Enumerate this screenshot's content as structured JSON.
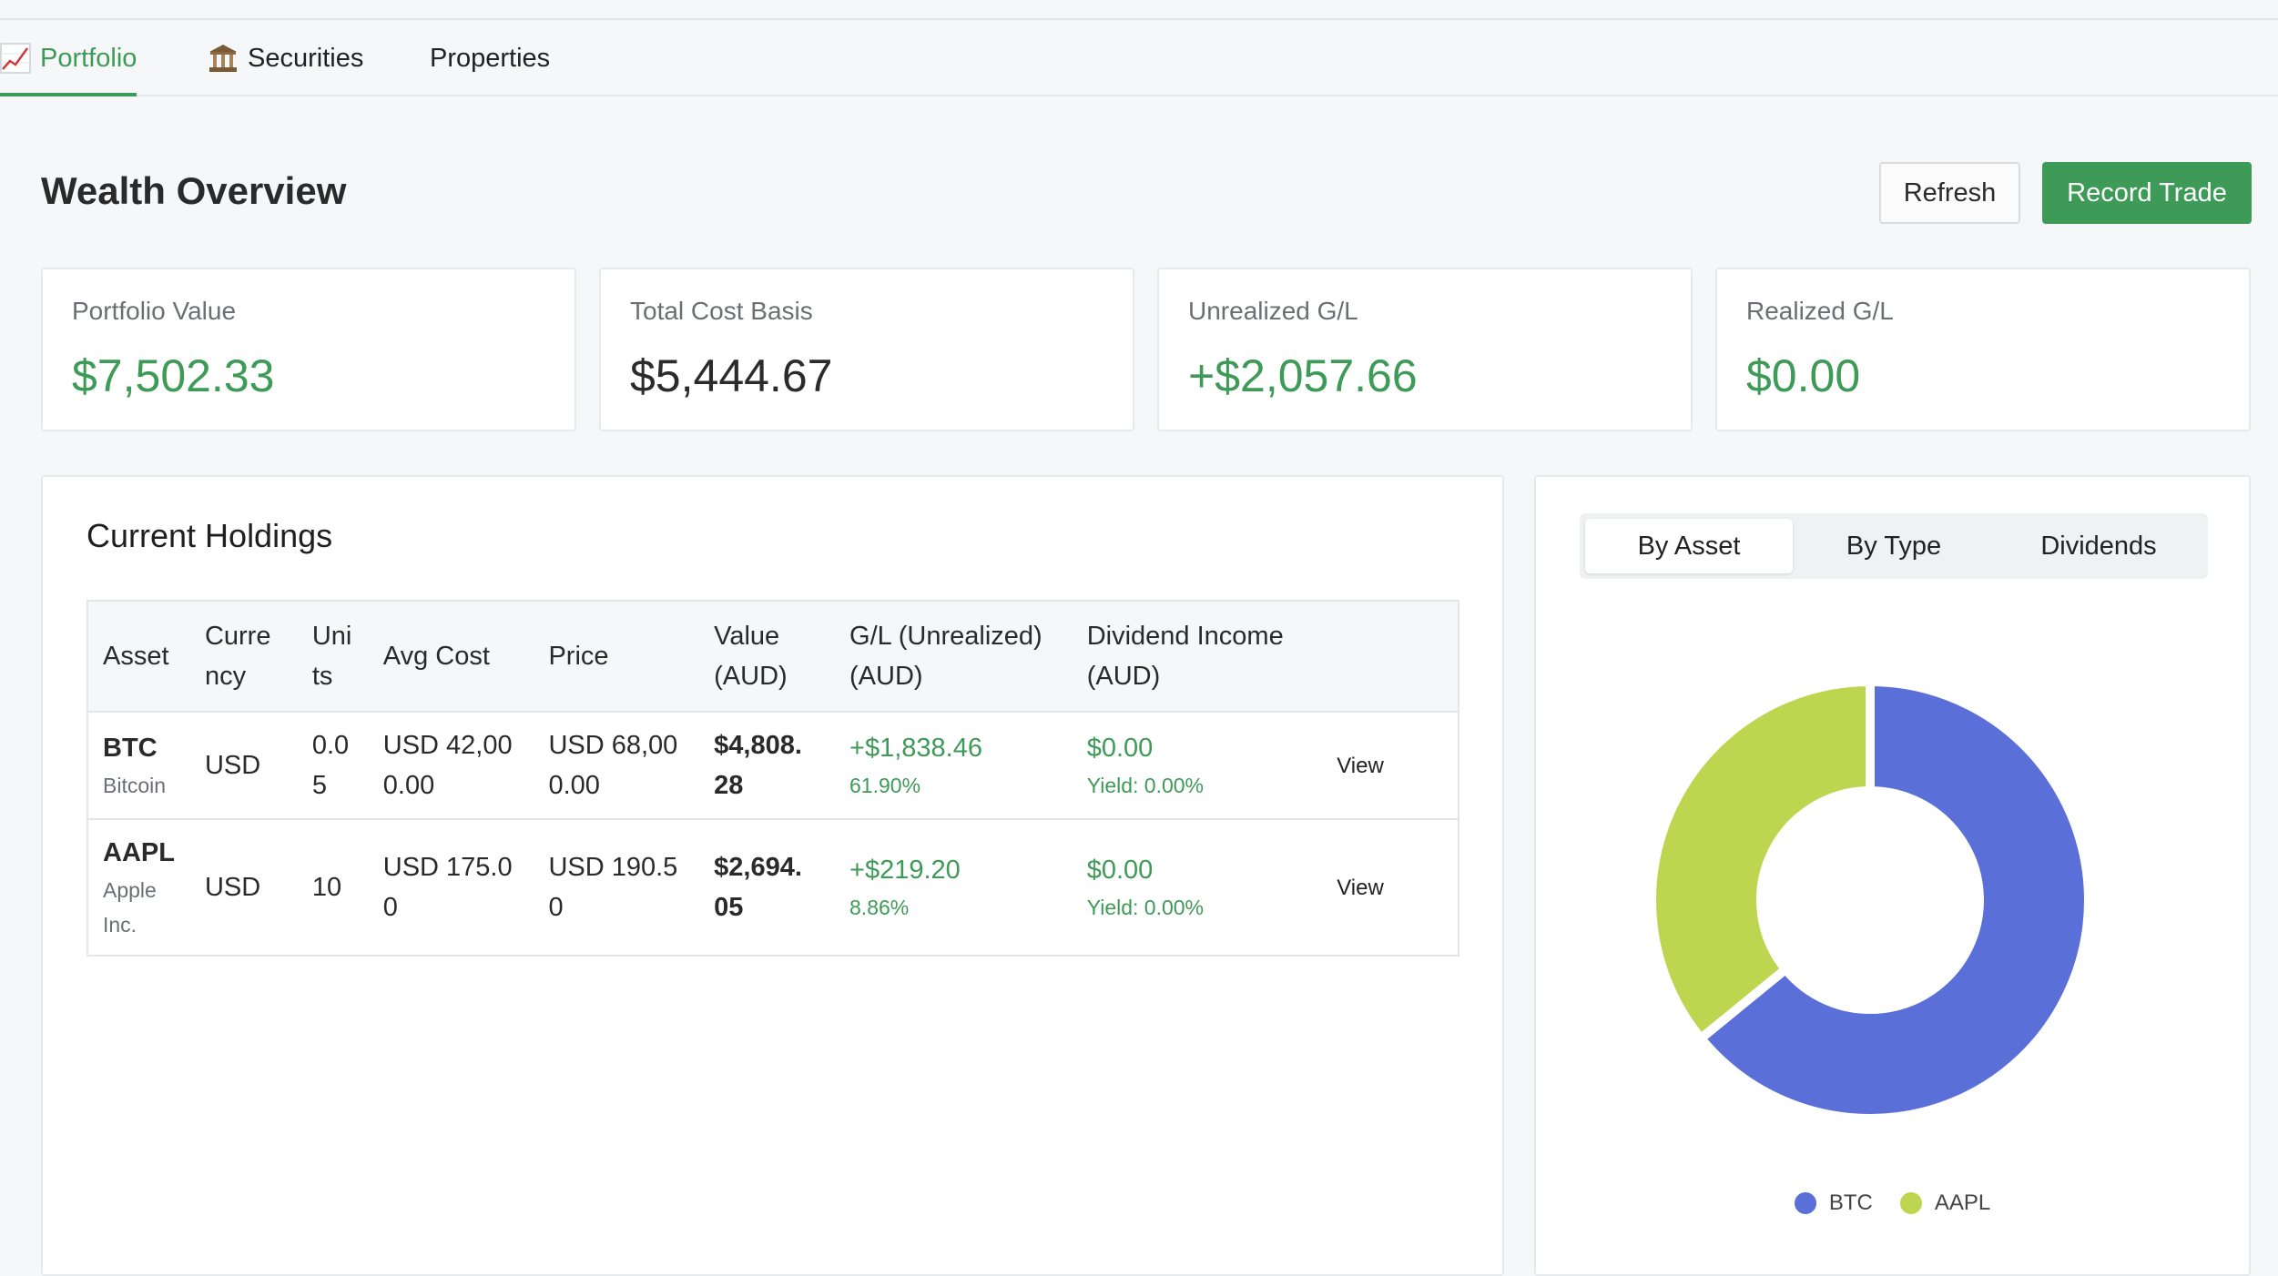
{
  "nav": {
    "tabs": [
      {
        "label": "Portfolio",
        "icon": "chart-increasing-icon",
        "active": true
      },
      {
        "label": "Securities",
        "icon": "bank-building-icon",
        "active": false
      },
      {
        "label": "Properties",
        "icon": "",
        "active": false
      }
    ]
  },
  "header": {
    "title": "Wealth Overview",
    "refresh_label": "Refresh",
    "record_trade_label": "Record Trade"
  },
  "metrics": [
    {
      "label": "Portfolio Value",
      "value": "$7,502.33",
      "tone": "positive"
    },
    {
      "label": "Total Cost Basis",
      "value": "$5,444.67",
      "tone": "neutral"
    },
    {
      "label": "Unrealized G/L",
      "value": "+$2,057.66",
      "tone": "positive"
    },
    {
      "label": "Realized G/L",
      "value": "$0.00",
      "tone": "positive"
    }
  ],
  "holdings": {
    "title": "Current Holdings",
    "columns": [
      "Asset",
      "Currency",
      "Units",
      "Avg Cost",
      "Price",
      "Value (AUD)",
      "G/L (Unrealized) (AUD)",
      "Dividend Income (AUD)",
      ""
    ],
    "rows": [
      {
        "symbol": "BTC",
        "name": "Bitcoin",
        "currency": "USD",
        "units": "0.05",
        "avg_cost": "USD 42,000.00",
        "price": "USD 68,000.00",
        "value": "$4,808.28",
        "gl": "+$1,838.46",
        "gl_pct": "61.90%",
        "dividend": "$0.00",
        "yield": "Yield: 0.00%",
        "action": "View"
      },
      {
        "symbol": "AAPL",
        "name": "Apple Inc.",
        "currency": "USD",
        "units": "10",
        "avg_cost": "USD 175.00",
        "price": "USD 190.50",
        "value": "$2,694.05",
        "gl": "+$219.20",
        "gl_pct": "8.86%",
        "dividend": "$0.00",
        "yield": "Yield: 0.00%",
        "action": "View"
      }
    ]
  },
  "chart_panel": {
    "tabs": [
      {
        "label": "By Asset",
        "active": true
      },
      {
        "label": "By Type",
        "active": false
      },
      {
        "label": "Dividends",
        "active": false
      }
    ]
  },
  "chart_data": {
    "type": "pie",
    "variant": "doughnut",
    "categories": [
      "BTC",
      "AAPL"
    ],
    "values": [
      4808.28,
      2694.05
    ],
    "colors": [
      "#5a6fd8",
      "#bdd54f"
    ],
    "legend": "bottom"
  },
  "colors": {
    "accent_green": "#3e9a57",
    "btc": "#5a6fd8",
    "aapl": "#bdd54f"
  }
}
